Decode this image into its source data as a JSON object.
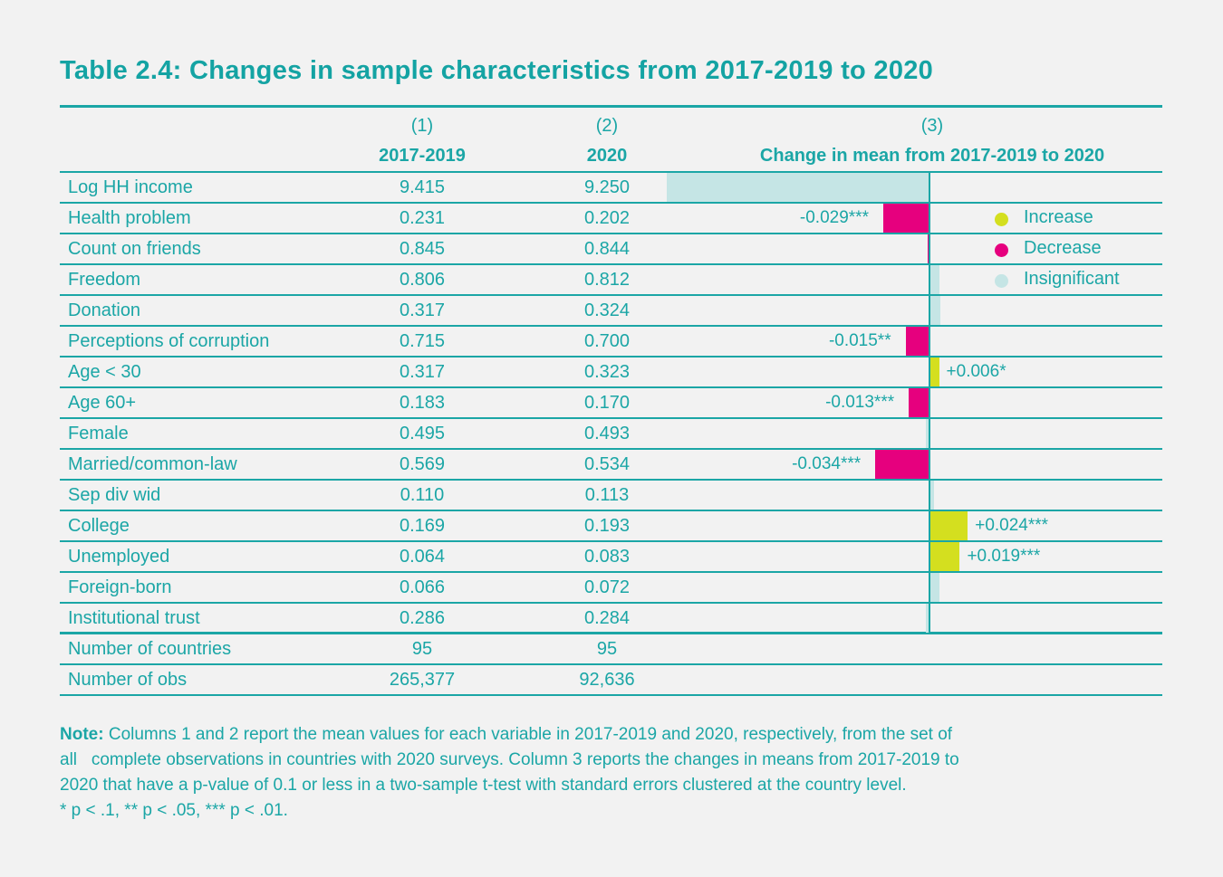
{
  "title": "Table 2.4: Changes in sample characteristics from 2017-2019 to 2020",
  "header": {
    "col1_num": "(1)",
    "col1_label": "2017-2019",
    "col2_num": "(2)",
    "col2_label": "2020",
    "col3_num": "(3)",
    "col3_label": "Change in mean from 2017-2019 to 2020"
  },
  "colors": {
    "accent": "#1ba6a6",
    "increase": "#d4df1f",
    "decrease": "#e6007e",
    "insignificant": "#c5e5e5",
    "background": "#f2f2f2"
  },
  "legend": [
    {
      "label": "Increase",
      "kind": "increase"
    },
    {
      "label": "Decrease",
      "kind": "decrease"
    },
    {
      "label": "Insignificant",
      "kind": "insignificant"
    }
  ],
  "rows": [
    {
      "label": "Log HH income",
      "v1": "9.415",
      "v2": "9.250",
      "change": -0.165,
      "kind": "insignificant",
      "change_label": ""
    },
    {
      "label": "Health problem",
      "v1": "0.231",
      "v2": "0.202",
      "change": -0.029,
      "kind": "decrease",
      "change_label": "-0.029***"
    },
    {
      "label": "Count on friends",
      "v1": "0.845",
      "v2": "0.844",
      "change": -0.001,
      "kind": "decrease",
      "change_label": ""
    },
    {
      "label": "Freedom",
      "v1": "0.806",
      "v2": "0.812",
      "change": 0.006,
      "kind": "insignificant",
      "change_label": ""
    },
    {
      "label": "Donation",
      "v1": "0.317",
      "v2": "0.324",
      "change": 0.007,
      "kind": "insignificant",
      "change_label": ""
    },
    {
      "label": "Perceptions of corruption",
      "v1": "0.715",
      "v2": "0.700",
      "change": -0.015,
      "kind": "decrease",
      "change_label": "-0.015**"
    },
    {
      "label": "Age < 30",
      "v1": "0.317",
      "v2": "0.323",
      "change": 0.006,
      "kind": "increase",
      "change_label": "+0.006*"
    },
    {
      "label": "Age 60+",
      "v1": "0.183",
      "v2": "0.170",
      "change": -0.013,
      "kind": "decrease",
      "change_label": "-0.013***"
    },
    {
      "label": "Female",
      "v1": "0.495",
      "v2": "0.493",
      "change": -0.002,
      "kind": "insignificant",
      "change_label": ""
    },
    {
      "label": "Married/common-law",
      "v1": "0.569",
      "v2": "0.534",
      "change": -0.034,
      "kind": "decrease",
      "change_label": "-0.034***"
    },
    {
      "label": "Sep div wid",
      "v1": "0.110",
      "v2": "0.113",
      "change": 0.003,
      "kind": "insignificant",
      "change_label": ""
    },
    {
      "label": "College",
      "v1": "0.169",
      "v2": "0.193",
      "change": 0.024,
      "kind": "increase",
      "change_label": "+0.024***"
    },
    {
      "label": "Unemployed",
      "v1": "0.064",
      "v2": "0.083",
      "change": 0.019,
      "kind": "increase",
      "change_label": "+0.019***"
    },
    {
      "label": "Foreign-born",
      "v1": "0.066",
      "v2": "0.072",
      "change": 0.006,
      "kind": "insignificant",
      "change_label": ""
    },
    {
      "label": "Institutional trust",
      "v1": "0.286",
      "v2": "0.284",
      "change": -0.002,
      "kind": "insignificant",
      "change_label": ""
    }
  ],
  "footer_rows": [
    {
      "label": "Number of countries",
      "v1": "95",
      "v2": "95"
    },
    {
      "label": "Number of obs",
      "v1": "265,377",
      "v2": "92,636"
    }
  ],
  "note": {
    "lead": "Note:",
    "lines": [
      " Columns 1 and 2 report the mean values for each variable in 2017-2019 and 2020, respectively, from the set of",
      "all   complete observations in countries with 2020 surveys. Column 3 reports the changes in means from 2017-2019 to",
      "2020 that have a p-value of 0.1 or less in a two-sample t-test with standard errors clustered at the country level.",
      "* p < .1, ** p < .05, *** p < .01."
    ]
  }
}
